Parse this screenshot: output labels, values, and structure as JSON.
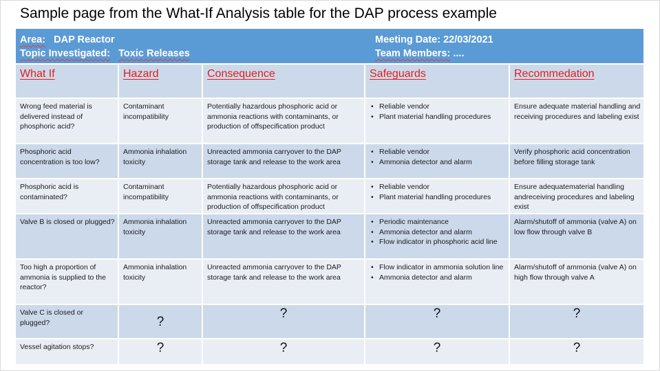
{
  "slide": {
    "title": "Sample page from the What-If Analysis table for the DAP process example"
  },
  "header": {
    "area_label": "Area:",
    "area_value": "DAP Reactor",
    "topic_label": "Topic Investigated:",
    "topic_value": "Toxic Releases",
    "meeting_label": "Meeting Date:",
    "meeting_value": "22/03/2021",
    "team_label": "Team Members:",
    "team_value": "...."
  },
  "columns": {
    "what_if": "What If",
    "hazard": "Hazard",
    "consequence": "Consequence",
    "safeguards": "Safeguards",
    "recommendation": "Recommedation"
  },
  "rows": [
    {
      "what_if": "Wrong feed material is delivered instead of phosphoric acid?",
      "hazard": "Contaminant incompatibility",
      "consequence": "Potentially hazardous phosphoric acid or ammonia reactions with contaminants, or production of offspecification product",
      "safeguards": [
        "Reliable vendor",
        "Plant material handling procedures"
      ],
      "recommendation": "Ensure adequate material handling and receiving procedures and labeling exist"
    },
    {
      "what_if": "Phosphoric acid concentration is too low?",
      "hazard": "Ammonia inhalation toxicity",
      "consequence": "Unreacted ammonia carryover to the DAP storage tank and release to the work area",
      "safeguards": [
        "Reliable vendor",
        "Ammonia detector and alarm"
      ],
      "recommendation": "Verify phosphoric acid concentration before filling storage tank"
    },
    {
      "what_if": "Phosphoric acid is contaminated?",
      "hazard": "Contaminant incompatibility",
      "consequence": "Potentially hazardous phosphoric acid or ammonia reactions with contaminants, or production of offspecification product",
      "safeguards": [
        "Reliable vendor",
        "Plant material handling procedures"
      ],
      "recommendation": " Ensure adequatematerial handling andreceiving procedures and labeling exist"
    },
    {
      "what_if": "Valve B is closed or plugged?",
      "hazard": "Ammonia inhalation toxicity",
      "consequence": "Unreacted ammonia carryover to the DAP storage tank and release to the work area",
      "safeguards": [
        "Periodic maintenance",
        "Ammonia detector and alarm",
        "Flow indicator in phosphoric acid line"
      ],
      "recommendation": "Alarm/shutoff of ammonia (valve A) on low flow through valve B"
    },
    {
      "what_if": "Too high a proportion of ammonia is supplied to the reactor?",
      "hazard": "Ammonia inhalation toxicity",
      "consequence": "Unreacted ammonia carryover to the DAP storage tank and release to the work area",
      "safeguards": [
        "Flow indicator in ammonia solution line",
        "Ammonia detector and alarm"
      ],
      "recommendation": "Alarm/shutoff  of ammonia (valve A) on high flow through valve A"
    },
    {
      "what_if": "Valve C is closed or plugged?",
      "hazard": "?",
      "consequence": "?",
      "safeguards": "?",
      "recommendation": "?"
    },
    {
      "what_if": "Vessel agitation stops?",
      "hazard": "?",
      "consequence": "?",
      "safeguards": "?",
      "recommendation": "?"
    }
  ]
}
